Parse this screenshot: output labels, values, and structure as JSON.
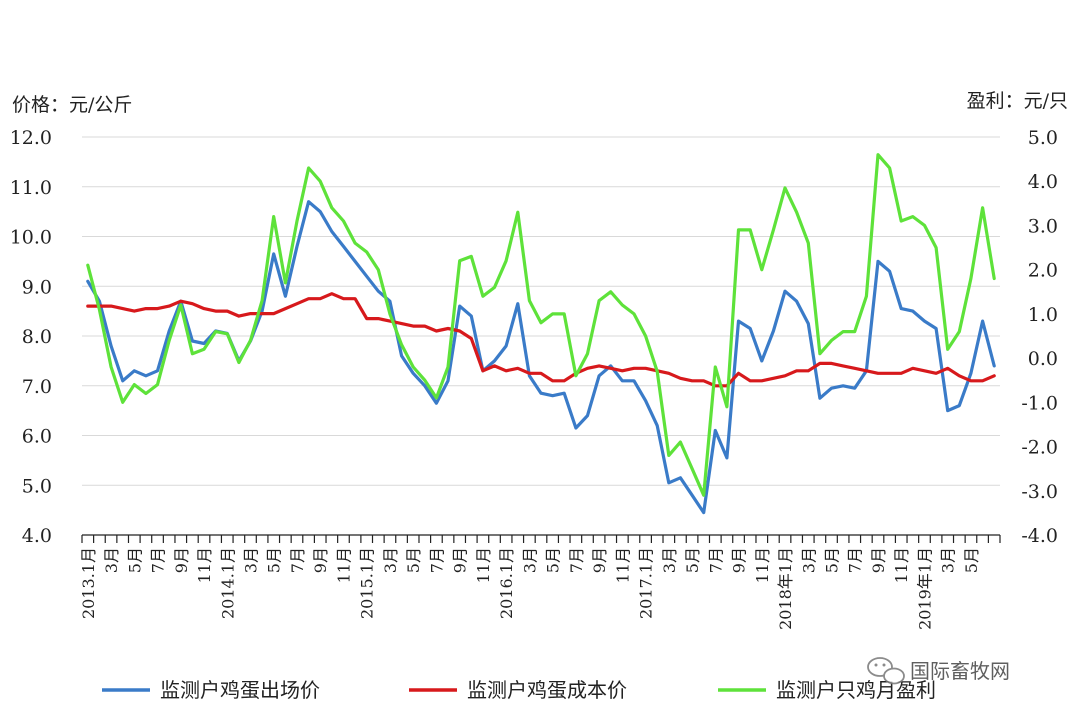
{
  "chart_data": {
    "type": "line",
    "title": "",
    "ylabel_left": "价格：元/公斤",
    "ylabel_right": "盈利：元/只",
    "ylim_left": [
      4.0,
      12.0
    ],
    "ylim_right": [
      -4.0,
      5.0
    ],
    "yticks_left": [
      "4.0",
      "5.0",
      "6.0",
      "7.0",
      "8.0",
      "9.0",
      "10.0",
      "11.0",
      "12.0"
    ],
    "yticks_right": [
      "-4.0",
      "-3.0",
      "-2.0",
      "-1.0",
      "0.0",
      "1.0",
      "2.0",
      "3.0",
      "4.0",
      "5.0"
    ],
    "x_tick_labels": [
      "2013.1月",
      "3月",
      "5月",
      "7月",
      "9月",
      "11月",
      "2014.1月",
      "3月",
      "5月",
      "7月",
      "9月",
      "11月",
      "2015.1月",
      "3月",
      "5月",
      "7月",
      "9月",
      "11月",
      "2016.1月",
      "3月",
      "5月",
      "7月",
      "9月",
      "11月",
      "2017.1月",
      "3月",
      "5月",
      "7月",
      "9月",
      "11月",
      "2018年1月",
      "3月",
      "5月",
      "7月",
      "9月",
      "11月",
      "2019年1月",
      "3月",
      "5月"
    ],
    "series": [
      {
        "name": "监测户鸡蛋出场价",
        "color": "#3a7bc8",
        "axis": "left",
        "values": [
          9.1,
          8.7,
          7.8,
          7.1,
          7.3,
          7.2,
          7.3,
          8.1,
          8.7,
          7.9,
          7.85,
          8.1,
          8.05,
          7.5,
          7.9,
          8.5,
          9.65,
          8.8,
          9.8,
          10.7,
          10.5,
          10.1,
          9.8,
          9.5,
          9.2,
          8.9,
          8.7,
          7.6,
          7.25,
          7.0,
          6.65,
          7.1,
          8.6,
          8.4,
          7.3,
          7.5,
          7.8,
          8.65,
          7.2,
          6.85,
          6.8,
          6.85,
          6.15,
          6.4,
          7.2,
          7.4,
          7.1,
          7.1,
          6.7,
          6.2,
          5.05,
          5.15,
          4.8,
          4.45,
          6.1,
          5.55,
          8.3,
          8.15,
          7.5,
          8.1,
          8.9,
          8.7,
          8.25,
          6.75,
          6.95,
          7.0,
          6.95,
          7.3,
          9.5,
          9.3,
          8.55,
          8.5,
          8.3,
          8.15,
          6.5,
          6.6,
          7.25,
          8.3,
          7.4
        ]
      },
      {
        "name": "监测户鸡蛋成本价",
        "color": "#d7191c",
        "axis": "left",
        "values": [
          8.6,
          8.6,
          8.6,
          8.55,
          8.5,
          8.55,
          8.55,
          8.6,
          8.7,
          8.65,
          8.55,
          8.5,
          8.5,
          8.4,
          8.45,
          8.45,
          8.45,
          8.55,
          8.65,
          8.75,
          8.75,
          8.85,
          8.75,
          8.75,
          8.35,
          8.35,
          8.3,
          8.25,
          8.2,
          8.2,
          8.1,
          8.15,
          8.1,
          7.95,
          7.3,
          7.4,
          7.3,
          7.35,
          7.25,
          7.25,
          7.1,
          7.1,
          7.25,
          7.35,
          7.4,
          7.35,
          7.3,
          7.35,
          7.35,
          7.3,
          7.25,
          7.15,
          7.1,
          7.1,
          7.0,
          7.0,
          7.25,
          7.1,
          7.1,
          7.15,
          7.2,
          7.3,
          7.3,
          7.45,
          7.45,
          7.4,
          7.35,
          7.3,
          7.25,
          7.25,
          7.25,
          7.35,
          7.3,
          7.25,
          7.35,
          7.2,
          7.1,
          7.1,
          7.2
        ]
      },
      {
        "name": "监测户只鸡月盈利",
        "color": "#5ee23a",
        "axis": "right",
        "values": [
          2.1,
          1.1,
          -0.2,
          -1.0,
          -0.6,
          -0.8,
          -0.6,
          0.4,
          1.2,
          0.1,
          0.2,
          0.6,
          0.55,
          -0.1,
          0.4,
          1.3,
          3.2,
          1.7,
          3.1,
          4.3,
          4.0,
          3.4,
          3.1,
          2.6,
          2.4,
          2.0,
          1.0,
          0.3,
          -0.2,
          -0.5,
          -0.9,
          -0.2,
          2.2,
          2.3,
          1.4,
          1.6,
          2.2,
          3.3,
          1.3,
          0.8,
          1.0,
          1.0,
          -0.4,
          0.1,
          1.3,
          1.5,
          1.2,
          1.0,
          0.5,
          -0.3,
          -2.2,
          -1.9,
          -2.5,
          -3.1,
          -0.2,
          -1.1,
          2.9,
          2.9,
          2.0,
          2.9,
          3.85,
          3.3,
          2.6,
          0.1,
          0.4,
          0.6,
          0.6,
          1.4,
          4.6,
          4.3,
          3.1,
          3.2,
          3.0,
          2.5,
          0.2,
          0.6,
          1.8,
          3.4,
          1.8
        ]
      }
    ],
    "legend_position": "bottom",
    "grid": true
  },
  "watermark": {
    "text": "国际畜牧网"
  }
}
